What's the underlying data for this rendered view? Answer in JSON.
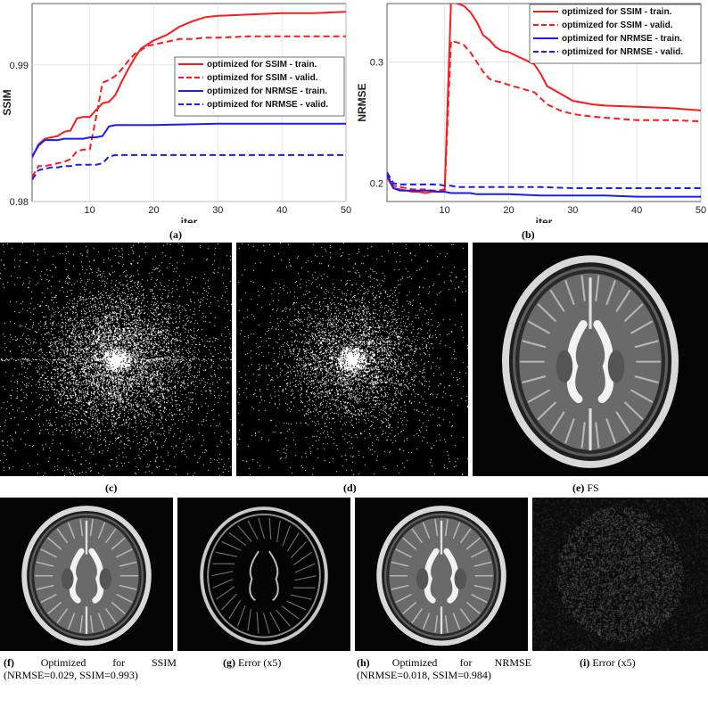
{
  "charts": [
    {
      "id": "a",
      "type": "line",
      "xlabel": "iter",
      "ylabel": "SSIM",
      "xlim": [
        1,
        50
      ],
      "ylim": [
        0.98,
        0.9945
      ],
      "xticks": [
        10,
        20,
        30,
        40,
        50
      ],
      "yticks": [
        0.98,
        0.99
      ],
      "ytick_labels": [
        "0.98",
        "0.99"
      ],
      "grid": true,
      "legend_position": "middle-right",
      "series": [
        {
          "name": "optimized for SSIM - train.",
          "color": "#ff1a1a",
          "dash": "solid",
          "x": [
            1,
            2,
            3,
            4,
            5,
            6,
            7,
            8,
            9,
            10,
            11,
            12,
            13,
            14,
            15,
            16,
            17,
            18,
            19,
            20,
            22,
            24,
            26,
            28,
            30,
            35,
            40,
            45,
            50
          ],
          "y": [
            0.9832,
            0.9842,
            0.9846,
            0.9847,
            0.9848,
            0.9851,
            0.9852,
            0.9861,
            0.9862,
            0.9862,
            0.9867,
            0.9872,
            0.9873,
            0.9878,
            0.9888,
            0.9897,
            0.9905,
            0.9912,
            0.9915,
            0.9918,
            0.9922,
            0.9928,
            0.9932,
            0.9935,
            0.9936,
            0.9937,
            0.9938,
            0.9938,
            0.9939
          ]
        },
        {
          "name": "optimized for SSIM - valid.",
          "color": "#ff1a1a",
          "dash": "dashed",
          "x": [
            1,
            2,
            3,
            4,
            5,
            6,
            7,
            8,
            9,
            10,
            11,
            12,
            13,
            14,
            15,
            16,
            17,
            18,
            19,
            20,
            22,
            24,
            26,
            28,
            30,
            35,
            40,
            45,
            50
          ],
          "y": [
            0.9818,
            0.9826,
            0.9826,
            0.9827,
            0.9828,
            0.9829,
            0.9831,
            0.9837,
            0.9838,
            0.9838,
            0.9862,
            0.9887,
            0.9889,
            0.9892,
            0.9897,
            0.9903,
            0.9908,
            0.9911,
            0.9914,
            0.9915,
            0.9917,
            0.9919,
            0.9919,
            0.992,
            0.992,
            0.9921,
            0.9921,
            0.9921,
            0.9921
          ]
        },
        {
          "name": "optimized for NRMSE - train.",
          "color": "#1a1aff",
          "dash": "solid",
          "x": [
            1,
            2,
            3,
            4,
            5,
            6,
            7,
            8,
            9,
            10,
            11,
            12,
            13,
            14,
            15,
            20,
            30,
            40,
            50
          ],
          "y": [
            0.9833,
            0.9841,
            0.9845,
            0.9845,
            0.9845,
            0.9846,
            0.9846,
            0.9846,
            0.9846,
            0.9847,
            0.9847,
            0.9848,
            0.9855,
            0.9856,
            0.9856,
            0.9856,
            0.9857,
            0.9857,
            0.9857
          ]
        },
        {
          "name": "optimized for NRMSE - valid.",
          "color": "#1a1aff",
          "dash": "dashed",
          "x": [
            1,
            2,
            3,
            4,
            5,
            6,
            7,
            8,
            9,
            10,
            11,
            12,
            13,
            14,
            15,
            20,
            30,
            40,
            50
          ],
          "y": [
            0.9816,
            0.9823,
            0.9824,
            0.9825,
            0.9825,
            0.9826,
            0.9826,
            0.9827,
            0.9827,
            0.9827,
            0.9827,
            0.9828,
            0.9833,
            0.9834,
            0.9834,
            0.9834,
            0.9834,
            0.9834,
            0.9834
          ]
        }
      ]
    },
    {
      "id": "b",
      "type": "line",
      "xlabel": "iter",
      "ylabel": "NRMSE",
      "xlim": [
        1,
        50
      ],
      "ylim": [
        0.185,
        0.348
      ],
      "xticks": [
        10,
        20,
        30,
        40,
        50
      ],
      "yticks": [
        0.2,
        0.3
      ],
      "ytick_labels": [
        "0.2",
        "0.3"
      ],
      "grid": true,
      "legend_position": "top-right",
      "series": [
        {
          "name": "optimized for SSIM - train.",
          "color": "#ff1a1a",
          "dash": "solid",
          "x": [
            1,
            2,
            3,
            4,
            5,
            6,
            7,
            8,
            9,
            10,
            11,
            12,
            13,
            14,
            15,
            16,
            17,
            18,
            19,
            20,
            22,
            24,
            25,
            26,
            28,
            30,
            33,
            35,
            40,
            45,
            50
          ],
          "y": [
            0.205,
            0.196,
            0.195,
            0.194,
            0.193,
            0.193,
            0.192,
            0.193,
            0.193,
            0.194,
            0.349,
            0.348,
            0.346,
            0.341,
            0.333,
            0.322,
            0.318,
            0.312,
            0.309,
            0.308,
            0.303,
            0.298,
            0.29,
            0.28,
            0.274,
            0.268,
            0.265,
            0.264,
            0.263,
            0.262,
            0.26
          ]
        },
        {
          "name": "optimized for SSIM - valid.",
          "color": "#ff1a1a",
          "dash": "dashed",
          "x": [
            1,
            2,
            3,
            4,
            5,
            6,
            7,
            8,
            9,
            10,
            11,
            12,
            13,
            14,
            15,
            16,
            17,
            18,
            19,
            20,
            22,
            24,
            25,
            26,
            28,
            30,
            33,
            35,
            40,
            45,
            50
          ],
          "y": [
            0.207,
            0.198,
            0.197,
            0.196,
            0.195,
            0.195,
            0.195,
            0.194,
            0.194,
            0.195,
            0.317,
            0.316,
            0.314,
            0.308,
            0.3,
            0.292,
            0.286,
            0.284,
            0.283,
            0.281,
            0.278,
            0.275,
            0.27,
            0.265,
            0.26,
            0.257,
            0.255,
            0.254,
            0.252,
            0.252,
            0.251
          ]
        },
        {
          "name": "optimized for NRMSE - train.",
          "color": "#1a1aff",
          "dash": "solid",
          "x": [
            1,
            2,
            3,
            4,
            5,
            6,
            7,
            8,
            9,
            10,
            11,
            12,
            13,
            14,
            15,
            20,
            25,
            30,
            35,
            40,
            45,
            50
          ],
          "y": [
            0.207,
            0.196,
            0.194,
            0.194,
            0.194,
            0.194,
            0.194,
            0.194,
            0.193,
            0.193,
            0.192,
            0.192,
            0.192,
            0.192,
            0.191,
            0.191,
            0.19,
            0.19,
            0.19,
            0.189,
            0.189,
            0.189
          ]
        },
        {
          "name": "optimized for NRMSE - valid.",
          "color": "#1a1aff",
          "dash": "dashed",
          "x": [
            1,
            2,
            3,
            4,
            5,
            6,
            7,
            8,
            9,
            10,
            11,
            12,
            13,
            14,
            15,
            20,
            25,
            30,
            35,
            40,
            45,
            50
          ],
          "y": [
            0.209,
            0.2,
            0.199,
            0.199,
            0.199,
            0.199,
            0.199,
            0.199,
            0.199,
            0.198,
            0.198,
            0.197,
            0.197,
            0.197,
            0.197,
            0.197,
            0.197,
            0.196,
            0.196,
            0.196,
            0.196,
            0.196
          ]
        }
      ]
    }
  ],
  "captions": {
    "a": "(a)",
    "b": "(b)",
    "c": "(c)",
    "d": "(d)",
    "e_letter": "(e)",
    "e_text": "FS",
    "f_letter": "(f)",
    "f_word1": "Optimized",
    "f_word2": "for",
    "f_word3": "SSIM",
    "f_line2": "(NRMSE=0.029, SSIM=0.993)",
    "g_letter": "(g)",
    "g_text": "Error (x5)",
    "h_letter": "(h)",
    "h_word1": "Optimized",
    "h_word2": "for",
    "h_word3": "NRMSE",
    "h_line2": "(NRMSE=0.018, SSIM=0.984)",
    "i_letter": "(i)",
    "i_text": "Error (x5)"
  }
}
